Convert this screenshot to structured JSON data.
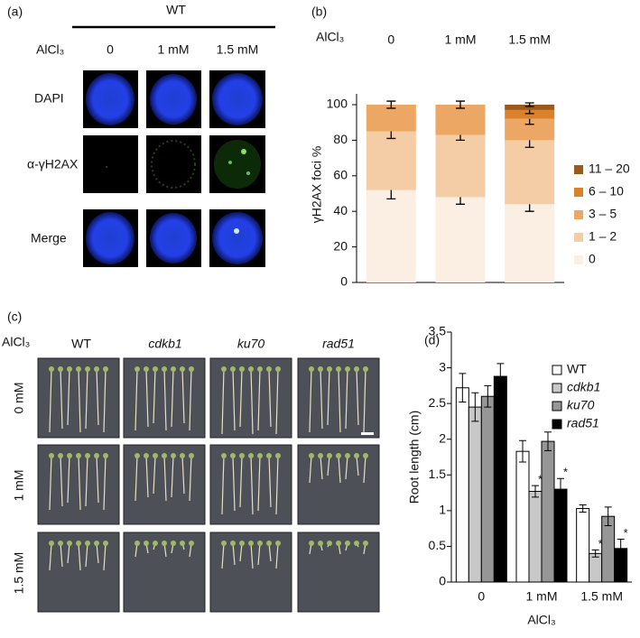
{
  "panel_a": {
    "label": "(a)",
    "genotype": "WT",
    "treatment_label": "AlCl₃",
    "columns": [
      "0",
      "1 mM",
      "1.5 mM"
    ],
    "rows": [
      "DAPI",
      "α-γH2AX",
      "Merge"
    ]
  },
  "panel_c": {
    "label": "(c)",
    "treatment_label": "AlCl₃",
    "columns": [
      "WT",
      "cdkb1",
      "ku70",
      "rad51"
    ],
    "rows": [
      "0 mM",
      "1 mM",
      "1.5 mM"
    ]
  },
  "chart_data": [
    {
      "type": "bar",
      "stacked": true,
      "label": "(b)",
      "treatment_label": "AlCl₃",
      "categories": [
        "0",
        "1 mM",
        "1.5 mM"
      ],
      "ylabel": "γH2AX foci %",
      "ylim": [
        0,
        100
      ],
      "yticks": [
        0,
        20,
        40,
        60,
        80,
        100
      ],
      "series": [
        {
          "name": "0",
          "color": "#fbeee3",
          "values": [
            52,
            48,
            44
          ],
          "errors": [
            5,
            4,
            4
          ]
        },
        {
          "name": "1 – 2",
          "color": "#f4cda6",
          "values": [
            33,
            35,
            36
          ],
          "errors": [
            4,
            3,
            4
          ]
        },
        {
          "name": "3 – 5",
          "color": "#eba763",
          "values": [
            15,
            17,
            12
          ],
          "errors": [
            2,
            2,
            3
          ]
        },
        {
          "name": "6 – 10",
          "color": "#d9822b",
          "values": [
            0,
            0,
            5
          ],
          "errors": [
            null,
            null,
            2
          ]
        },
        {
          "name": "11 – 20",
          "color": "#9c5a1a",
          "values": [
            0,
            0,
            3
          ],
          "errors": [
            null,
            null,
            1
          ]
        }
      ]
    },
    {
      "type": "bar",
      "label": "(d)",
      "xlabel": "AlCl₃",
      "ylabel": "Root length (cm)",
      "categories": [
        "0",
        "1 mM",
        "1.5 mM"
      ],
      "ylim": [
        0,
        3.5
      ],
      "yticks": [
        0,
        0.5,
        1,
        1.5,
        2,
        2.5,
        3,
        3.5
      ],
      "series": [
        {
          "name": "WT",
          "color": "#ffffff",
          "values": [
            2.72,
            1.83,
            1.03
          ],
          "errors": [
            0.2,
            0.15,
            0.05
          ],
          "significance": [
            null,
            null,
            null
          ]
        },
        {
          "name": "cdkb1",
          "color": "#c8c8c8",
          "values": [
            2.45,
            1.27,
            0.4
          ],
          "errors": [
            0.2,
            0.08,
            0.05
          ],
          "significance": [
            null,
            "*",
            "*"
          ]
        },
        {
          "name": "ku70",
          "color": "#969696",
          "values": [
            2.6,
            1.97,
            0.92
          ],
          "errors": [
            0.15,
            0.13,
            0.13
          ],
          "significance": [
            null,
            null,
            null
          ]
        },
        {
          "name": "rad51",
          "color": "#000000",
          "values": [
            2.88,
            1.3,
            0.47
          ],
          "errors": [
            0.18,
            0.15,
            0.13
          ],
          "significance": [
            null,
            "*",
            "*"
          ]
        }
      ]
    }
  ]
}
